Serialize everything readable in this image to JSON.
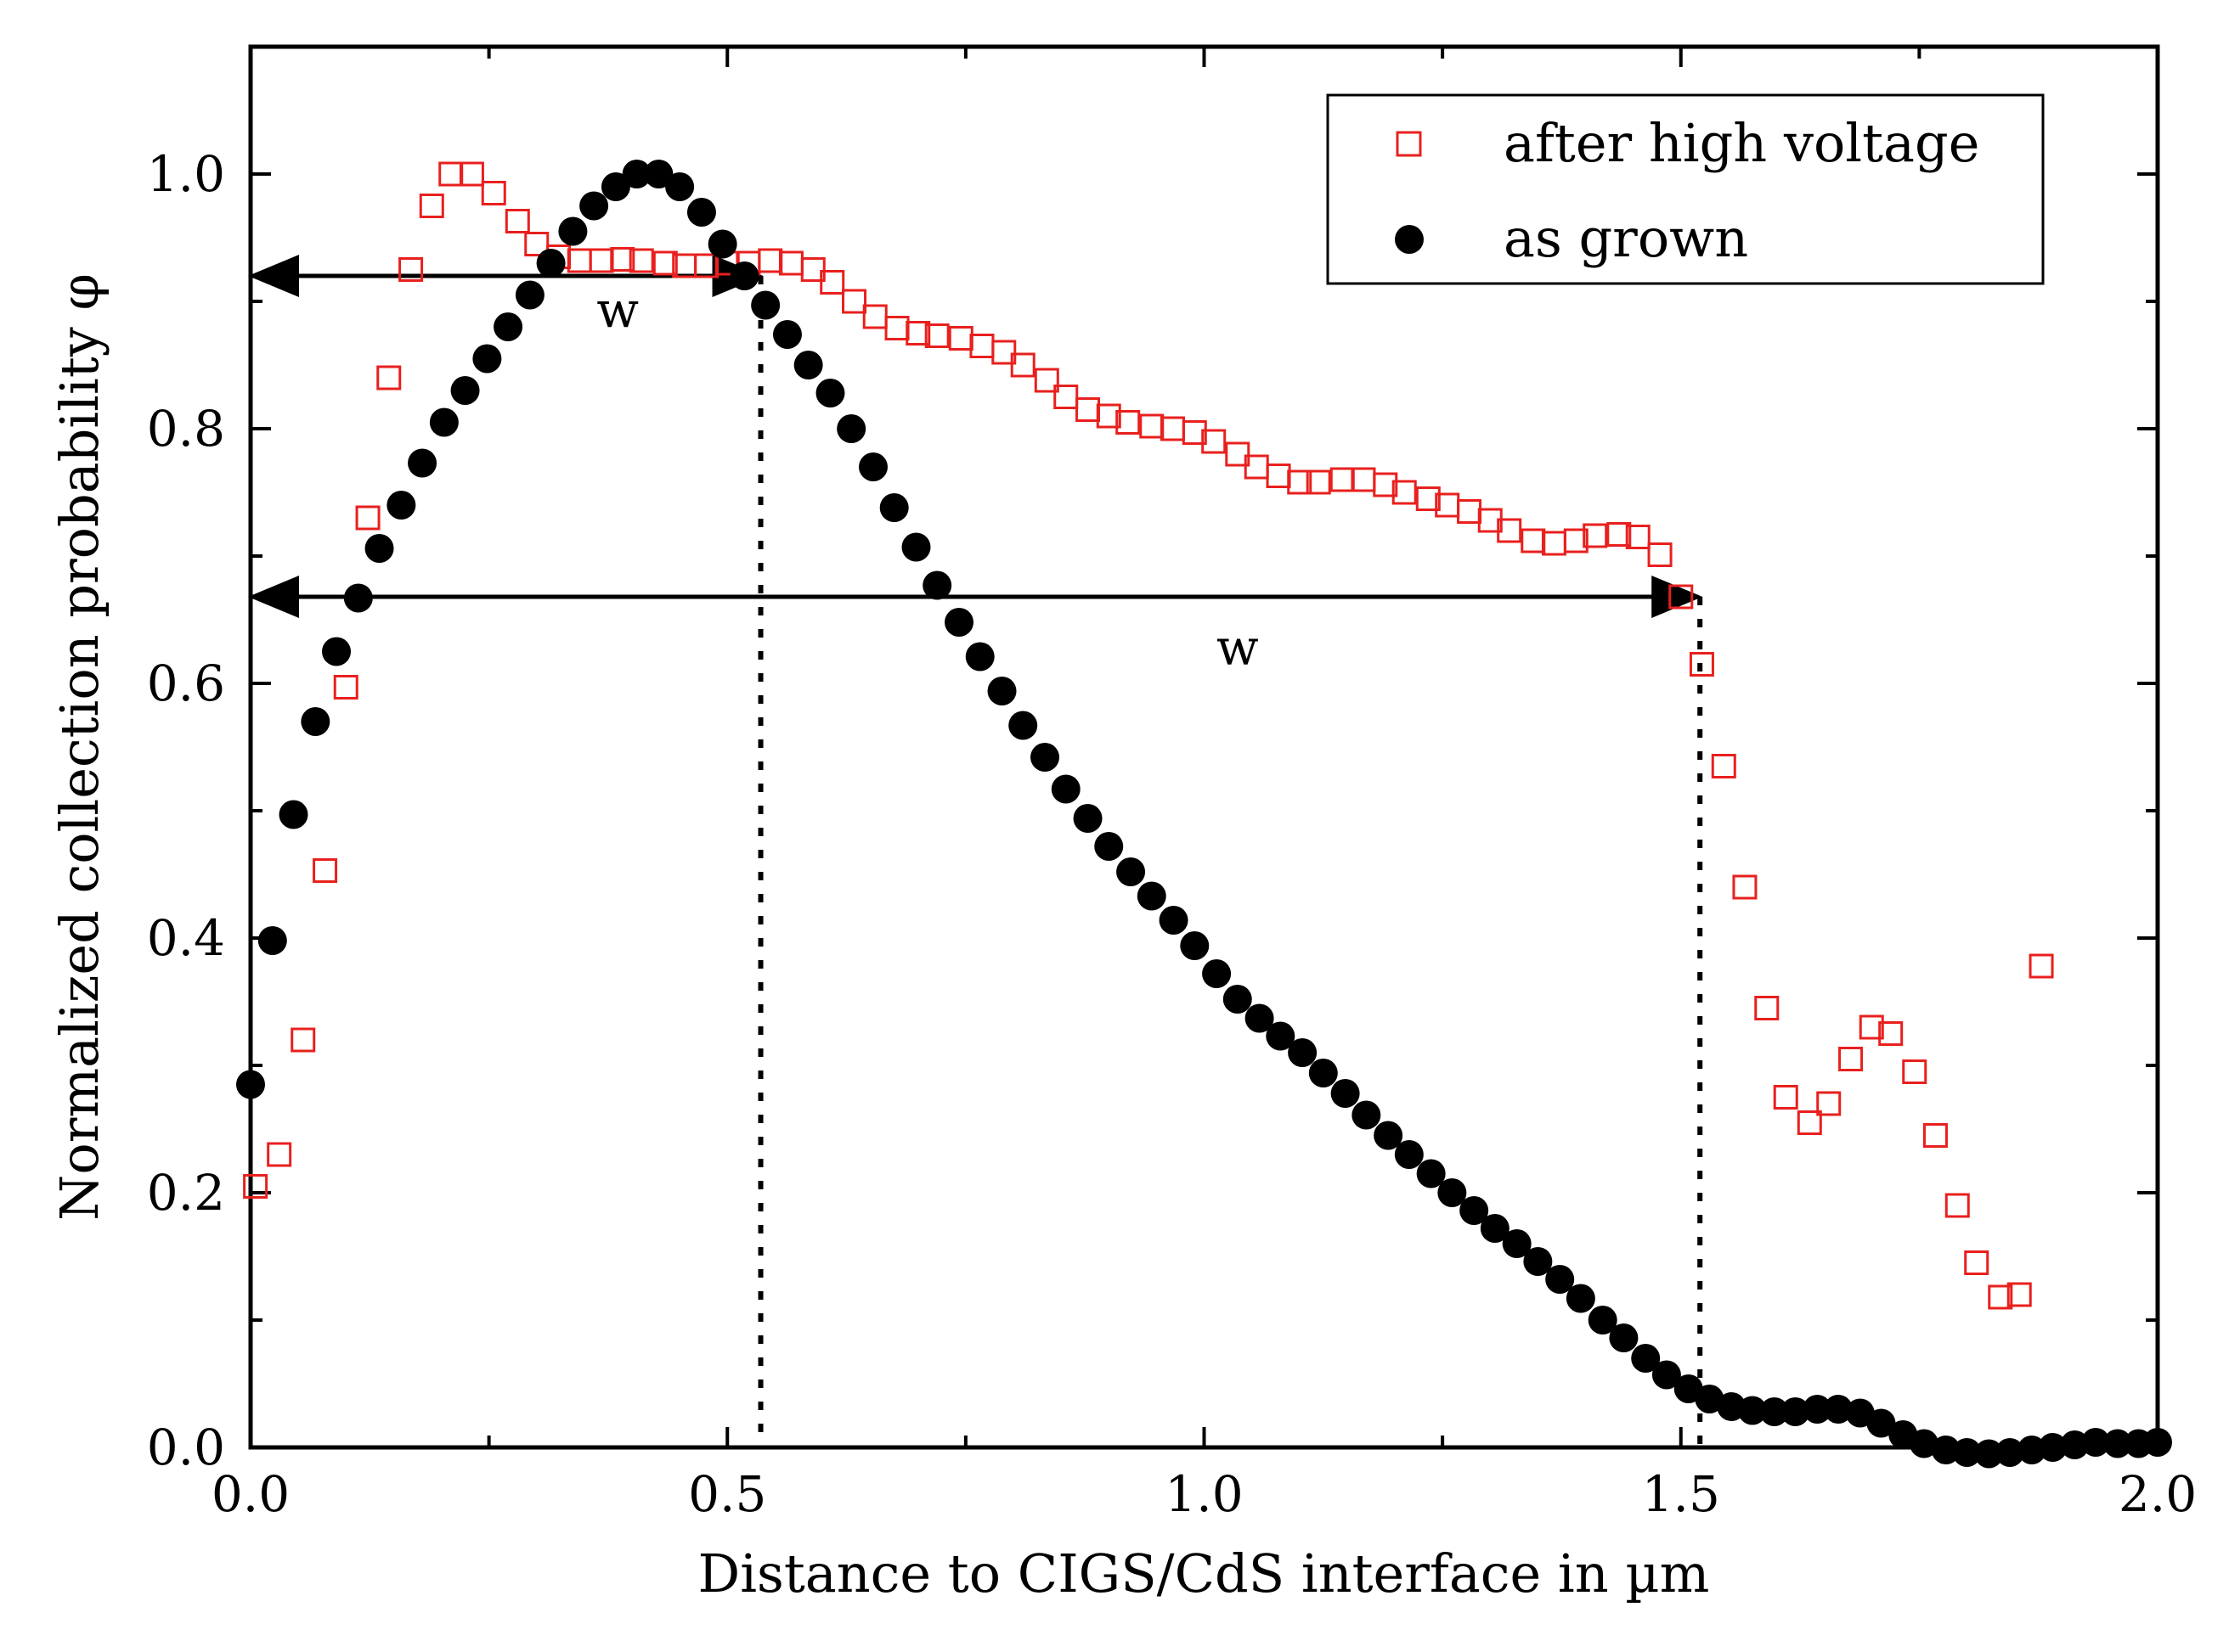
{
  "chart_data": {
    "type": "scatter",
    "title": "",
    "xlabel": "Distance to CIGS/CdS interface in µm",
    "ylabel": "Normalized collection probability φ",
    "xlim": [
      0.0,
      2.0
    ],
    "ylim": [
      0.0,
      1.1
    ],
    "x_ticks": [
      0.0,
      0.5,
      1.0,
      1.5,
      2.0
    ],
    "x_tick_labels": [
      "0.0",
      "0.5",
      "1.0",
      "1.5",
      "2.0"
    ],
    "y_ticks": [
      0.0,
      0.2,
      0.4,
      0.6,
      0.8,
      1.0
    ],
    "y_tick_labels": [
      "0.0",
      "0.2",
      "0.4",
      "0.6",
      "0.8",
      "1.0"
    ],
    "grid": false,
    "legend_position": "top-right",
    "series": [
      {
        "name": "after high voltage",
        "marker": "open-square",
        "color": "#e8201e",
        "points": [
          [
            0.005,
            0.205
          ],
          [
            0.03,
            0.23
          ],
          [
            0.055,
            0.32
          ],
          [
            0.078,
            0.453
          ],
          [
            0.1,
            0.597
          ],
          [
            0.123,
            0.73
          ],
          [
            0.145,
            0.84
          ],
          [
            0.168,
            0.925
          ],
          [
            0.19,
            0.975
          ],
          [
            0.21,
            1.0
          ],
          [
            0.232,
            1.0
          ],
          [
            0.255,
            0.985
          ],
          [
            0.28,
            0.963
          ],
          [
            0.3,
            0.945
          ],
          [
            0.323,
            0.935
          ],
          [
            0.345,
            0.932
          ],
          [
            0.368,
            0.932
          ],
          [
            0.39,
            0.933
          ],
          [
            0.41,
            0.932
          ],
          [
            0.435,
            0.93
          ],
          [
            0.455,
            0.928
          ],
          [
            0.478,
            0.928
          ],
          [
            0.5,
            0.93
          ],
          [
            0.522,
            0.93
          ],
          [
            0.545,
            0.932
          ],
          [
            0.567,
            0.93
          ],
          [
            0.59,
            0.925
          ],
          [
            0.61,
            0.915
          ],
          [
            0.633,
            0.9
          ],
          [
            0.655,
            0.888
          ],
          [
            0.678,
            0.879
          ],
          [
            0.7,
            0.875
          ],
          [
            0.72,
            0.873
          ],
          [
            0.745,
            0.871
          ],
          [
            0.767,
            0.865
          ],
          [
            0.79,
            0.86
          ],
          [
            0.81,
            0.85
          ],
          [
            0.835,
            0.838
          ],
          [
            0.855,
            0.825
          ],
          [
            0.878,
            0.815
          ],
          [
            0.9,
            0.81
          ],
          [
            0.92,
            0.805
          ],
          [
            0.945,
            0.802
          ],
          [
            0.967,
            0.8
          ],
          [
            0.99,
            0.797
          ],
          [
            1.01,
            0.79
          ],
          [
            1.035,
            0.78
          ],
          [
            1.055,
            0.77
          ],
          [
            1.078,
            0.763
          ],
          [
            1.1,
            0.758
          ],
          [
            1.12,
            0.758
          ],
          [
            1.145,
            0.76
          ],
          [
            1.167,
            0.76
          ],
          [
            1.19,
            0.756
          ],
          [
            1.21,
            0.75
          ],
          [
            1.235,
            0.745
          ],
          [
            1.255,
            0.74
          ],
          [
            1.278,
            0.735
          ],
          [
            1.3,
            0.728
          ],
          [
            1.32,
            0.72
          ],
          [
            1.345,
            0.712
          ],
          [
            1.367,
            0.71
          ],
          [
            1.39,
            0.712
          ],
          [
            1.41,
            0.716
          ],
          [
            1.435,
            0.717
          ],
          [
            1.455,
            0.715
          ],
          [
            1.478,
            0.701
          ],
          [
            1.5,
            0.668
          ],
          [
            1.522,
            0.615
          ],
          [
            1.545,
            0.535
          ],
          [
            1.567,
            0.44
          ],
          [
            1.59,
            0.345
          ],
          [
            1.61,
            0.275
          ],
          [
            1.635,
            0.255
          ],
          [
            1.655,
            0.27
          ],
          [
            1.678,
            0.305
          ],
          [
            1.7,
            0.33
          ],
          [
            1.72,
            0.325
          ],
          [
            1.745,
            0.295
          ],
          [
            1.767,
            0.245
          ],
          [
            1.79,
            0.19
          ],
          [
            1.81,
            0.145
          ],
          [
            1.835,
            0.118
          ],
          [
            1.855,
            0.12
          ],
          [
            1.878,
            0.378
          ]
        ]
      },
      {
        "name": "as grown",
        "marker": "filled-circle",
        "color": "#000000",
        "points": [
          [
            0.0,
            0.285
          ],
          [
            0.023,
            0.398
          ],
          [
            0.045,
            0.497
          ],
          [
            0.068,
            0.57
          ],
          [
            0.09,
            0.625
          ],
          [
            0.113,
            0.667
          ],
          [
            0.135,
            0.706
          ],
          [
            0.158,
            0.74
          ],
          [
            0.18,
            0.773
          ],
          [
            0.203,
            0.805
          ],
          [
            0.225,
            0.83
          ],
          [
            0.248,
            0.855
          ],
          [
            0.27,
            0.88
          ],
          [
            0.293,
            0.905
          ],
          [
            0.315,
            0.93
          ],
          [
            0.338,
            0.955
          ],
          [
            0.36,
            0.975
          ],
          [
            0.383,
            0.99
          ],
          [
            0.405,
            1.0
          ],
          [
            0.428,
            1.0
          ],
          [
            0.45,
            0.99
          ],
          [
            0.473,
            0.97
          ],
          [
            0.495,
            0.945
          ],
          [
            0.518,
            0.92
          ],
          [
            0.54,
            0.897
          ],
          [
            0.563,
            0.874
          ],
          [
            0.585,
            0.85
          ],
          [
            0.608,
            0.828
          ],
          [
            0.63,
            0.8
          ],
          [
            0.653,
            0.77
          ],
          [
            0.675,
            0.738
          ],
          [
            0.698,
            0.707
          ],
          [
            0.72,
            0.677
          ],
          [
            0.743,
            0.648
          ],
          [
            0.765,
            0.621
          ],
          [
            0.788,
            0.594
          ],
          [
            0.81,
            0.567
          ],
          [
            0.833,
            0.542
          ],
          [
            0.855,
            0.517
          ],
          [
            0.878,
            0.494
          ],
          [
            0.9,
            0.472
          ],
          [
            0.923,
            0.452
          ],
          [
            0.945,
            0.433
          ],
          [
            0.968,
            0.414
          ],
          [
            0.99,
            0.394
          ],
          [
            1.013,
            0.372
          ],
          [
            1.035,
            0.352
          ],
          [
            1.058,
            0.337
          ],
          [
            1.08,
            0.323
          ],
          [
            1.103,
            0.31
          ],
          [
            1.125,
            0.294
          ],
          [
            1.148,
            0.278
          ],
          [
            1.17,
            0.261
          ],
          [
            1.193,
            0.245
          ],
          [
            1.215,
            0.23
          ],
          [
            1.238,
            0.215
          ],
          [
            1.26,
            0.2
          ],
          [
            1.283,
            0.186
          ],
          [
            1.305,
            0.172
          ],
          [
            1.328,
            0.16
          ],
          [
            1.35,
            0.146
          ],
          [
            1.373,
            0.132
          ],
          [
            1.395,
            0.117
          ],
          [
            1.418,
            0.1
          ],
          [
            1.44,
            0.086
          ],
          [
            1.463,
            0.07
          ],
          [
            1.485,
            0.057
          ],
          [
            1.508,
            0.046
          ],
          [
            1.53,
            0.038
          ],
          [
            1.553,
            0.032
          ],
          [
            1.575,
            0.029
          ],
          [
            1.598,
            0.028
          ],
          [
            1.62,
            0.028
          ],
          [
            1.643,
            0.03
          ],
          [
            1.665,
            0.03
          ],
          [
            1.688,
            0.027
          ],
          [
            1.71,
            0.019
          ],
          [
            1.733,
            0.01
          ],
          [
            1.755,
            0.003
          ],
          [
            1.778,
            -0.002
          ],
          [
            1.8,
            -0.004
          ],
          [
            1.823,
            -0.005
          ],
          [
            1.845,
            -0.004
          ],
          [
            1.868,
            -0.002
          ],
          [
            1.89,
            0.0
          ],
          [
            1.913,
            0.002
          ],
          [
            1.935,
            0.004
          ],
          [
            1.958,
            0.003
          ],
          [
            1.98,
            0.003
          ],
          [
            2.0,
            0.004
          ]
        ]
      }
    ],
    "annotations": [
      {
        "type": "double-arrow",
        "x0": 0.0,
        "x1": 0.535,
        "y": 0.92,
        "label": "w",
        "label_x": 0.385,
        "label_y": 0.88
      },
      {
        "type": "double-arrow",
        "x0": 0.0,
        "x1": 1.52,
        "y": 0.668,
        "label": "w",
        "label_x": 1.035,
        "label_y": 0.615
      },
      {
        "type": "vertical-dotted-line",
        "x": 0.535,
        "y0": 0.0,
        "y1": 0.92
      },
      {
        "type": "vertical-dotted-line",
        "x": 1.52,
        "y0": 0.0,
        "y1": 0.668
      }
    ]
  }
}
